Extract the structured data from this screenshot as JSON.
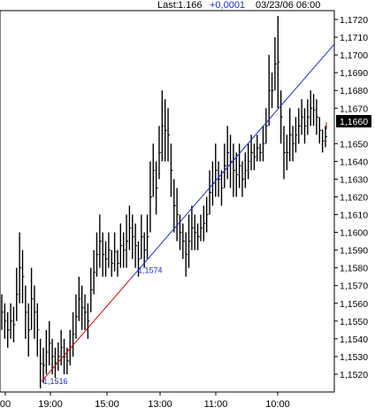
{
  "chart_data": {
    "type": "ohlc-bar",
    "header": {
      "last_label": "Last:",
      "last_value": "1.166",
      "change": "+0,0001",
      "datetime": "03/23/06 06:00"
    },
    "last_price_tag": "1,1660",
    "ylim": [
      1.151,
      1.1725
    ],
    "y_ticks": [
      "1,1720",
      "1,1710",
      "1,1700",
      "1,1690",
      "1,1680",
      "1,1670",
      "1,1650",
      "1,1640",
      "1,1630",
      "1,1620",
      "1,1610",
      "1,1600",
      "1,1590",
      "1,1580",
      "1,1570",
      "1,1560",
      "1,1550",
      "1,1540",
      "1,1530",
      "1,1520"
    ],
    "x_ticks": [
      "00",
      "19:00",
      "15:00",
      "13:00",
      "11:00",
      "10:00"
    ],
    "trendline_points": [
      {
        "label": "1,1516",
        "value": 1.1516
      },
      {
        "label": "1,1574",
        "value": 1.1574
      }
    ],
    "bars_high_low": [
      [
        1.1565,
        1.1545
      ],
      [
        1.156,
        1.154
      ],
      [
        1.1555,
        1.1535
      ],
      [
        1.156,
        1.154
      ],
      [
        1.1558,
        1.1538
      ],
      [
        1.158,
        1.155
      ],
      [
        1.16,
        1.156
      ],
      [
        1.159,
        1.156
      ],
      [
        1.157,
        1.154
      ],
      [
        1.156,
        1.153
      ],
      [
        1.158,
        1.1545
      ],
      [
        1.157,
        1.154
      ],
      [
        1.156,
        1.153
      ],
      [
        1.154,
        1.1512
      ],
      [
        1.1535,
        1.1515
      ],
      [
        1.1545,
        1.152
      ],
      [
        1.155,
        1.1525
      ],
      [
        1.154,
        1.152
      ],
      [
        1.1535,
        1.1518
      ],
      [
        1.1538,
        1.1522
      ],
      [
        1.1545,
        1.1525
      ],
      [
        1.154,
        1.152
      ],
      [
        1.1535,
        1.152
      ],
      [
        1.1545,
        1.1525
      ],
      [
        1.1555,
        1.153
      ],
      [
        1.1565,
        1.154
      ],
      [
        1.1575,
        1.155
      ],
      [
        1.157,
        1.1545
      ],
      [
        1.1565,
        1.1545
      ],
      [
        1.156,
        1.154
      ],
      [
        1.158,
        1.1555
      ],
      [
        1.159,
        1.1565
      ],
      [
        1.16,
        1.1575
      ],
      [
        1.161,
        1.158
      ],
      [
        1.16,
        1.1575
      ],
      [
        1.1595,
        1.1575
      ],
      [
        1.16,
        1.158
      ],
      [
        1.159,
        1.1575
      ],
      [
        1.16,
        1.1578
      ],
      [
        1.159,
        1.1575
      ],
      [
        1.1605,
        1.158
      ],
      [
        1.16,
        1.158
      ],
      [
        1.161,
        1.158
      ],
      [
        1.1615,
        1.159
      ],
      [
        1.161,
        1.1585
      ],
      [
        1.1605,
        1.158
      ],
      [
        1.1595,
        1.1575
      ],
      [
        1.161,
        1.1585
      ],
      [
        1.16,
        1.158
      ],
      [
        1.161,
        1.1585
      ],
      [
        1.164,
        1.16
      ],
      [
        1.165,
        1.162
      ],
      [
        1.164,
        1.161
      ],
      [
        1.166,
        1.163
      ],
      [
        1.168,
        1.164
      ],
      [
        1.1675,
        1.164
      ],
      [
        1.167,
        1.164
      ],
      [
        1.165,
        1.162
      ],
      [
        1.163,
        1.16
      ],
      [
        1.1625,
        1.1595
      ],
      [
        1.161,
        1.159
      ],
      [
        1.1605,
        1.1585
      ],
      [
        1.16,
        1.1575
      ],
      [
        1.161,
        1.158
      ],
      [
        1.1615,
        1.159
      ],
      [
        1.161,
        1.159
      ],
      [
        1.1605,
        1.159
      ],
      [
        1.161,
        1.1595
      ],
      [
        1.1615,
        1.1595
      ],
      [
        1.162,
        1.16
      ],
      [
        1.1635,
        1.161
      ],
      [
        1.164,
        1.1615
      ],
      [
        1.165,
        1.162
      ],
      [
        1.164,
        1.162
      ],
      [
        1.1635,
        1.1615
      ],
      [
        1.165,
        1.1625
      ],
      [
        1.166,
        1.163
      ],
      [
        1.1655,
        1.1625
      ],
      [
        1.165,
        1.162
      ],
      [
        1.1645,
        1.162
      ],
      [
        1.165,
        1.1625
      ],
      [
        1.164,
        1.162
      ],
      [
        1.1645,
        1.1625
      ],
      [
        1.165,
        1.163
      ],
      [
        1.1655,
        1.1635
      ],
      [
        1.165,
        1.1635
      ],
      [
        1.1655,
        1.164
      ],
      [
        1.165,
        1.164
      ],
      [
        1.166,
        1.164
      ],
      [
        1.167,
        1.165
      ],
      [
        1.17,
        1.166
      ],
      [
        1.169,
        1.167
      ],
      [
        1.171,
        1.168
      ],
      [
        1.1722,
        1.167
      ],
      [
        1.168,
        1.165
      ],
      [
        1.166,
        1.163
      ],
      [
        1.1655,
        1.1635
      ],
      [
        1.167,
        1.164
      ],
      [
        1.166,
        1.164
      ],
      [
        1.1665,
        1.1645
      ],
      [
        1.167,
        1.165
      ],
      [
        1.1675,
        1.1655
      ],
      [
        1.167,
        1.165
      ],
      [
        1.1675,
        1.1655
      ],
      [
        1.168,
        1.166
      ],
      [
        1.1678,
        1.166
      ],
      [
        1.1675,
        1.1655
      ],
      [
        1.1665,
        1.165
      ],
      [
        1.1658,
        1.1645
      ],
      [
        1.166,
        1.1648
      ]
    ]
  }
}
